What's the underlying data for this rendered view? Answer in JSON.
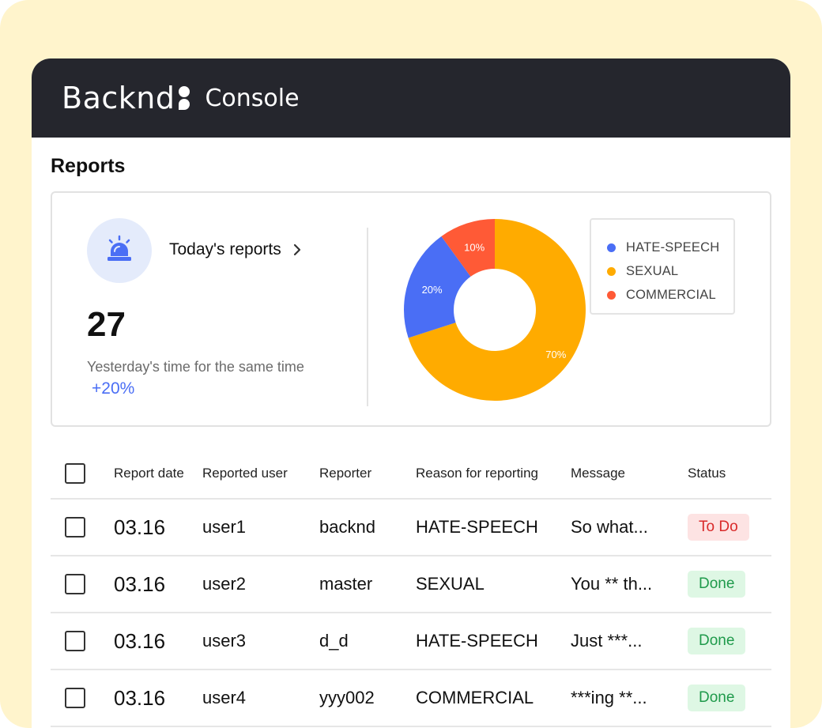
{
  "app": {
    "logo_text": "Backnd",
    "console_label": "Console"
  },
  "page": {
    "title": "Reports"
  },
  "summary": {
    "link_label": "Today's reports",
    "count": "27",
    "compare_label": "Yesterday's time for the same time",
    "change": "+20%"
  },
  "colors": {
    "hate_speech": "#4a6ef5",
    "sexual": "#ffab00",
    "commercial": "#ff5a36",
    "topbar": "#25262d",
    "accent": "#4a6ef5"
  },
  "chart_data": {
    "type": "pie",
    "donut": true,
    "categories": [
      "HATE-SPEECH",
      "SEXUAL",
      "COMMERCIAL"
    ],
    "values": [
      20,
      70,
      10
    ],
    "labels": [
      "20%",
      "70%",
      "10%"
    ],
    "colors": [
      "#4a6ef5",
      "#ffab00",
      "#ff5a36"
    ],
    "legend_position": "right"
  },
  "legend": [
    {
      "label": "HATE-SPEECH",
      "color": "#4a6ef5"
    },
    {
      "label": "SEXUAL",
      "color": "#ffab00"
    },
    {
      "label": "COMMERCIAL",
      "color": "#ff5a36"
    }
  ],
  "table": {
    "headers": {
      "date": "Report date",
      "user": "Reported user",
      "reporter": "Reporter",
      "reason": "Reason for reporting",
      "message": "Message",
      "status": "Status"
    },
    "rows": [
      {
        "date": "03.16",
        "user": "user1",
        "reporter": "backnd",
        "reason": "HATE-SPEECH",
        "message": "So what...",
        "status": "To Do",
        "status_type": "todo"
      },
      {
        "date": "03.16",
        "user": "user2",
        "reporter": "master",
        "reason": "SEXUAL",
        "message": "You ** th...",
        "status": "Done",
        "status_type": "done"
      },
      {
        "date": "03.16",
        "user": "user3",
        "reporter": "d_d",
        "reason": "HATE-SPEECH",
        "message": "Just ***...",
        "status": "Done",
        "status_type": "done"
      },
      {
        "date": "03.16",
        "user": "user4",
        "reporter": "yyy002",
        "reason": "COMMERCIAL",
        "message": "***ing **...",
        "status": "Done",
        "status_type": "done"
      }
    ]
  }
}
